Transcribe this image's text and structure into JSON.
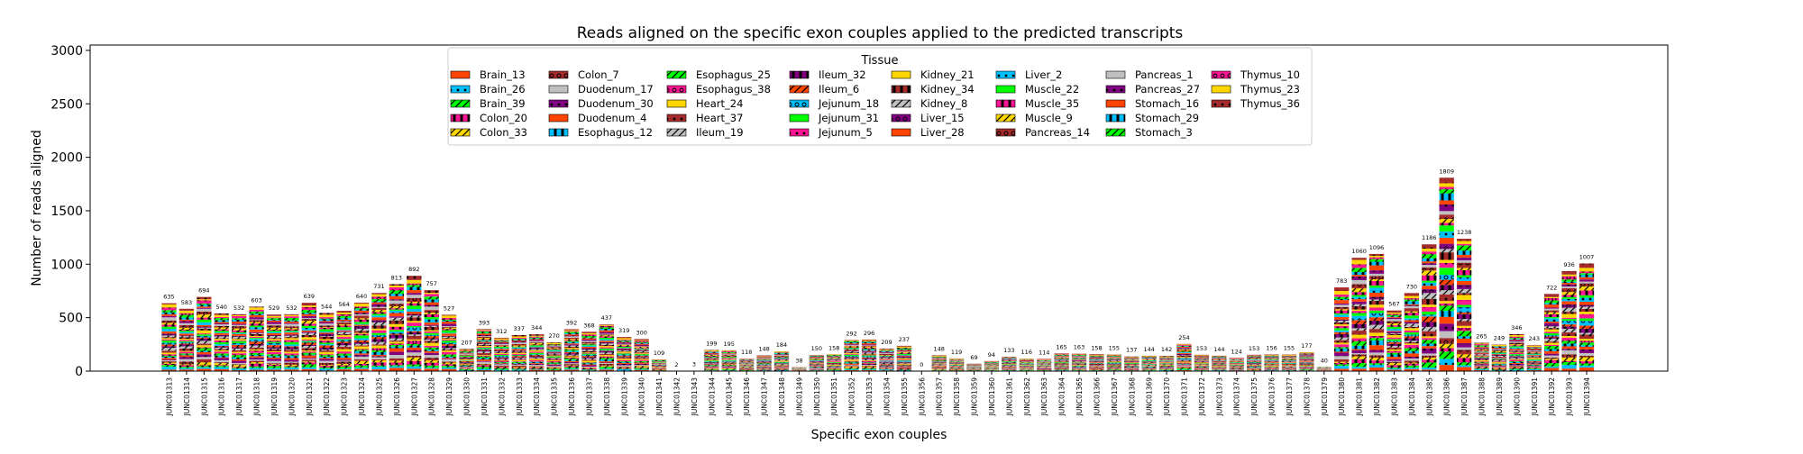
{
  "chart_data": {
    "type": "bar",
    "stacked": true,
    "title": "Reads aligned on the specific exon couples applied to the predicted transcripts",
    "xlabel": "Specific exon couples",
    "ylabel": "Number of reads aligned",
    "ylim": [
      0,
      3050
    ],
    "yticks": [
      0,
      500,
      1000,
      1500,
      2000,
      2500,
      3000
    ],
    "grid": false,
    "legend": {
      "title": "Tissue",
      "placement": "top-center",
      "ncol": 8
    },
    "categories": [
      "JUNC01313",
      "JUNC01314",
      "JUNC01315",
      "JUNC01316",
      "JUNC01317",
      "JUNC01318",
      "JUNC01319",
      "JUNC01320",
      "JUNC01321",
      "JUNC01322",
      "JUNC01323",
      "JUNC01324",
      "JUNC01325",
      "JUNC01326",
      "JUNC01327",
      "JUNC01328",
      "JUNC01329",
      "JUNC01330",
      "JUNC01331",
      "JUNC01332",
      "JUNC01333",
      "JUNC01334",
      "JUNC01335",
      "JUNC01336",
      "JUNC01337",
      "JUNC01338",
      "JUNC01339",
      "JUNC01340",
      "JUNC01341",
      "JUNC01342",
      "JUNC01343",
      "JUNC01344",
      "JUNC01345",
      "JUNC01346",
      "JUNC01347",
      "JUNC01348",
      "JUNC01349",
      "JUNC01350",
      "JUNC01351",
      "JUNC01352",
      "JUNC01353",
      "JUNC01354",
      "JUNC01355",
      "JUNC01356",
      "JUNC01357",
      "JUNC01358",
      "JUNC01359",
      "JUNC01360",
      "JUNC01361",
      "JUNC01362",
      "JUNC01363",
      "JUNC01364",
      "JUNC01365",
      "JUNC01366",
      "JUNC01367",
      "JUNC01368",
      "JUNC01369",
      "JUNC01370",
      "JUNC01371",
      "JUNC01372",
      "JUNC01373",
      "JUNC01374",
      "JUNC01375",
      "JUNC01376",
      "JUNC01377",
      "JUNC01378",
      "JUNC01379",
      "JUNC01380",
      "JUNC01381",
      "JUNC01382",
      "JUNC01383",
      "JUNC01384",
      "JUNC01385",
      "JUNC01386",
      "JUNC01387",
      "JUNC01388",
      "JUNC01389",
      "JUNC01390",
      "JUNC01391",
      "JUNC01392",
      "JUNC01393",
      "JUNC01394"
    ],
    "totals": [
      635,
      583,
      694,
      540,
      532,
      603,
      529,
      532,
      639,
      544,
      564,
      640,
      731,
      813,
      892,
      757,
      527,
      207,
      393,
      312,
      337,
      344,
      270,
      392,
      368,
      437,
      319,
      300,
      109,
      2,
      3,
      199,
      195,
      118,
      148,
      184,
      38,
      150,
      158,
      292,
      296,
      209,
      237,
      0,
      148,
      119,
      69,
      94,
      133,
      116,
      114,
      165,
      163,
      158,
      155,
      137,
      144,
      142,
      254,
      153,
      144,
      124,
      153,
      156,
      155,
      177,
      40,
      783,
      1060,
      1096,
      567,
      730,
      1186,
      1809,
      1238,
      265,
      249,
      346,
      243,
      722,
      936,
      1007
    ],
    "total_labels": [
      "635",
      "583",
      "694",
      "540",
      "532",
      "603",
      "529",
      "532",
      "639",
      "544",
      "564",
      "640",
      "731",
      "813",
      "892",
      "757",
      "527",
      "207",
      "393",
      "312",
      "337",
      "344",
      "270",
      "392",
      "368",
      "437",
      "319",
      "300",
      "109",
      "2",
      "3",
      "199",
      "195",
      "118",
      "148",
      "184",
      "38",
      "150",
      "158",
      "292",
      "296",
      "209",
      "237",
      "0",
      "148",
      "119",
      "69",
      "94",
      "133",
      "116",
      "114",
      "165",
      "163",
      "158",
      "155",
      "137",
      "144",
      "142",
      "254",
      "153",
      "144",
      "124",
      "153",
      "156",
      "155",
      "177",
      "40",
      "783",
      "1060",
      "1096",
      "567",
      "730",
      "1186",
      "1809",
      "1238",
      "265",
      "249",
      "346",
      "243",
      "722",
      "936",
      "1007"
    ],
    "series": [
      {
        "name": "Brain_13",
        "color": "#FF4500",
        "hatch": ""
      },
      {
        "name": "Brain_26",
        "color": "#00BFFF",
        "hatch": "dot"
      },
      {
        "name": "Brain_39",
        "color": "#00FF00",
        "hatch": "slash"
      },
      {
        "name": "Colon_20",
        "color": "#FF1493",
        "hatch": "bar"
      },
      {
        "name": "Colon_33",
        "color": "#FFD700",
        "hatch": "slash"
      },
      {
        "name": "Colon_7",
        "color": "#A52A2A",
        "hatch": "ring"
      },
      {
        "name": "Duodenum_17",
        "color": "#C0C0C0",
        "hatch": ""
      },
      {
        "name": "Duodenum_30",
        "color": "#800080",
        "hatch": "dot"
      },
      {
        "name": "Duodenum_4",
        "color": "#FF4500",
        "hatch": ""
      },
      {
        "name": "Esophagus_12",
        "color": "#00BFFF",
        "hatch": "bar"
      },
      {
        "name": "Esophagus_25",
        "color": "#00FF00",
        "hatch": "slash"
      },
      {
        "name": "Esophagus_38",
        "color": "#FF1493",
        "hatch": "ring"
      },
      {
        "name": "Heart_24",
        "color": "#FFD700",
        "hatch": ""
      },
      {
        "name": "Heart_37",
        "color": "#A52A2A",
        "hatch": "dot"
      },
      {
        "name": "Ileum_19",
        "color": "#C0C0C0",
        "hatch": "slash"
      },
      {
        "name": "Ileum_32",
        "color": "#800080",
        "hatch": "bar"
      },
      {
        "name": "Ileum_6",
        "color": "#FF4500",
        "hatch": "slash"
      },
      {
        "name": "Jejunum_18",
        "color": "#00BFFF",
        "hatch": "ring"
      },
      {
        "name": "Jejunum_31",
        "color": "#00FF00",
        "hatch": ""
      },
      {
        "name": "Jejunum_5",
        "color": "#FF1493",
        "hatch": "dot"
      },
      {
        "name": "Kidney_21",
        "color": "#FFD700",
        "hatch": ""
      },
      {
        "name": "Kidney_34",
        "color": "#A52A2A",
        "hatch": "bar"
      },
      {
        "name": "Kidney_8",
        "color": "#C0C0C0",
        "hatch": "slash"
      },
      {
        "name": "Liver_15",
        "color": "#800080",
        "hatch": "ring"
      },
      {
        "name": "Liver_28",
        "color": "#FF4500",
        "hatch": ""
      },
      {
        "name": "Liver_2",
        "color": "#00BFFF",
        "hatch": "dot"
      },
      {
        "name": "Muscle_22",
        "color": "#00FF00",
        "hatch": ""
      },
      {
        "name": "Muscle_35",
        "color": "#FF1493",
        "hatch": "bar"
      },
      {
        "name": "Muscle_9",
        "color": "#FFD700",
        "hatch": "slash"
      },
      {
        "name": "Pancreas_14",
        "color": "#A52A2A",
        "hatch": "ring"
      },
      {
        "name": "Pancreas_1",
        "color": "#C0C0C0",
        "hatch": ""
      },
      {
        "name": "Pancreas_27",
        "color": "#800080",
        "hatch": "dot"
      },
      {
        "name": "Stomach_16",
        "color": "#FF4500",
        "hatch": ""
      },
      {
        "name": "Stomach_29",
        "color": "#00BFFF",
        "hatch": "bar"
      },
      {
        "name": "Stomach_3",
        "color": "#00FF00",
        "hatch": "slash"
      },
      {
        "name": "Thymus_10",
        "color": "#FF1493",
        "hatch": "ring"
      },
      {
        "name": "Thymus_23",
        "color": "#FFD700",
        "hatch": ""
      },
      {
        "name": "Thymus_36",
        "color": "#A52A2A",
        "hatch": "dot"
      }
    ]
  }
}
